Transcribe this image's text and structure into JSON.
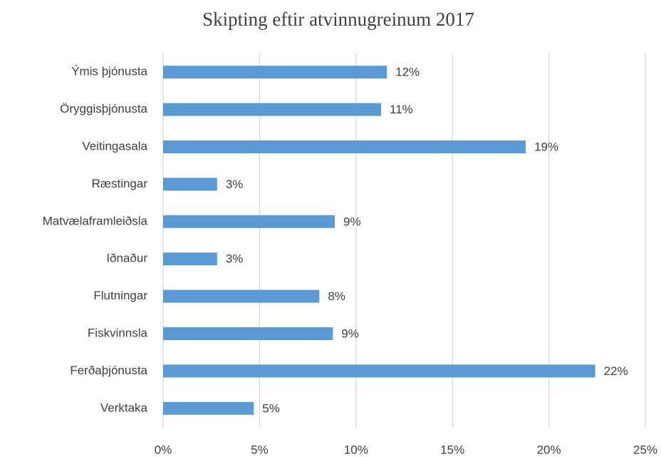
{
  "chart_data": {
    "type": "bar",
    "orientation": "horizontal",
    "title": "Skipting eftir atvinnugreinum 2017",
    "categories": [
      "Ýmis þjónusta",
      "Öryggisþjónusta",
      "Veitingasala",
      "Ræstingar",
      "Matvælaframleiðsla",
      "Iðnaður",
      "Flutningar",
      "Fiskvinnsla",
      "Ferðaþjónusta",
      "Verktaka"
    ],
    "values": [
      11.6,
      11.3,
      18.8,
      2.8,
      8.9,
      2.8,
      8.1,
      8.8,
      22.4,
      4.7
    ],
    "value_labels": [
      "12%",
      "11%",
      "19%",
      "3%",
      "9%",
      "3%",
      "8%",
      "9%",
      "22%",
      "5%"
    ],
    "color": "#5b9bd5",
    "xlim": [
      0,
      25
    ],
    "xticks": [
      {
        "value": 0,
        "label": "0%"
      },
      {
        "value": 5,
        "label": "5%"
      },
      {
        "value": 10,
        "label": "10%"
      },
      {
        "value": 15,
        "label": "15%"
      },
      {
        "value": 20,
        "label": "20%"
      },
      {
        "value": 25,
        "label": "25%"
      }
    ],
    "grid": true
  }
}
